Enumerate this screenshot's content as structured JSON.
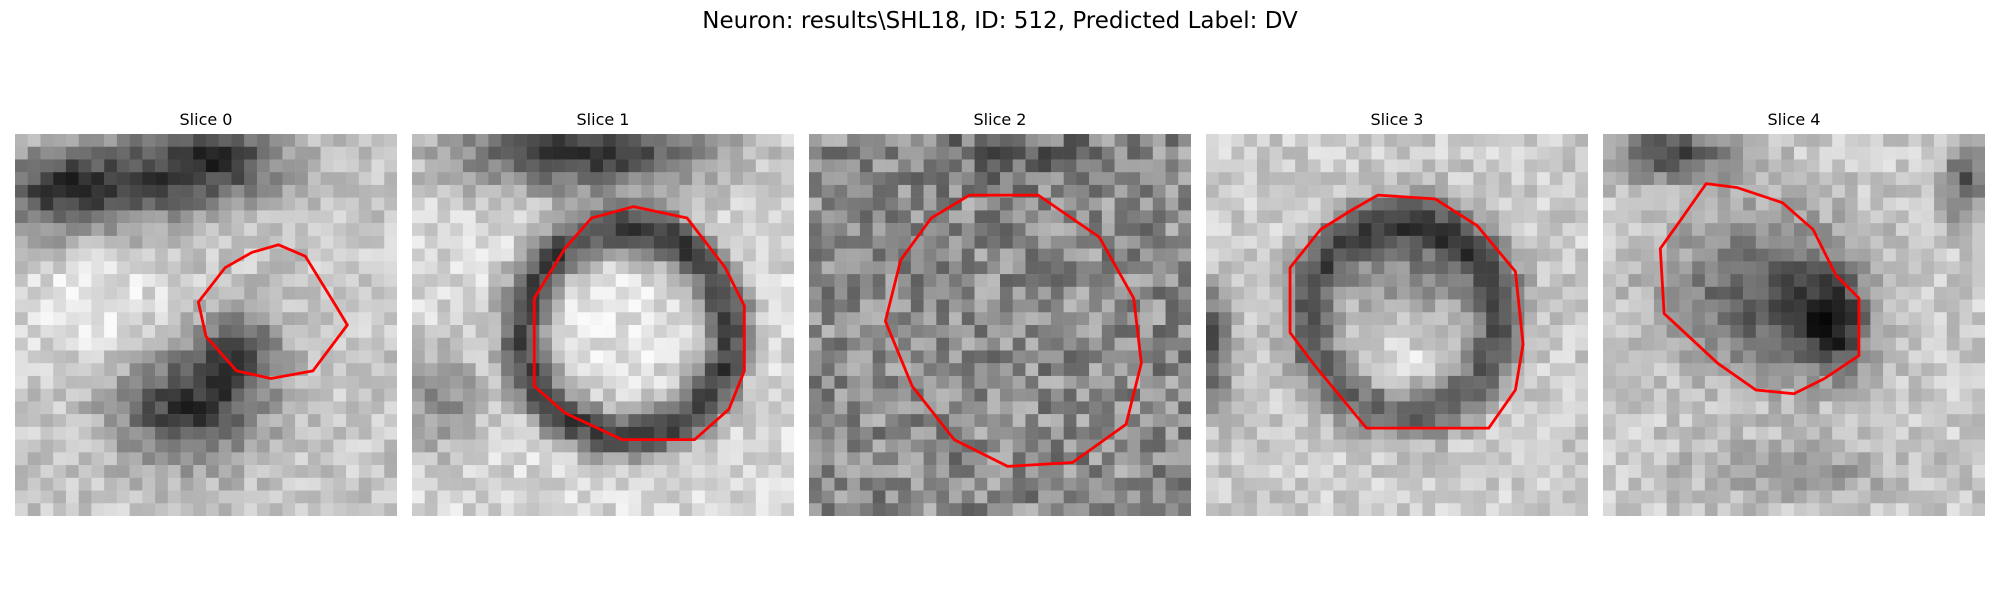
{
  "figure": {
    "title": "Neuron: results\\SHL18, ID: 512, Predicted Label: DV",
    "contour_color": "#ff0000",
    "colormap": "grayscale",
    "slices": [
      {
        "label": "Slice 0",
        "pattern": "dark-blobs-top-and-lower-left",
        "contour": [
          [
            0.69,
            0.29
          ],
          [
            0.76,
            0.32
          ],
          [
            0.84,
            0.45
          ],
          [
            0.87,
            0.5
          ],
          [
            0.78,
            0.62
          ],
          [
            0.67,
            0.64
          ],
          [
            0.58,
            0.62
          ],
          [
            0.5,
            0.53
          ],
          [
            0.48,
            0.44
          ],
          [
            0.55,
            0.35
          ],
          [
            0.62,
            0.31
          ]
        ]
      },
      {
        "label": "Slice 1",
        "pattern": "dark-ring-bright-core",
        "contour": [
          [
            0.58,
            0.19
          ],
          [
            0.72,
            0.22
          ],
          [
            0.82,
            0.35
          ],
          [
            0.87,
            0.45
          ],
          [
            0.87,
            0.62
          ],
          [
            0.83,
            0.72
          ],
          [
            0.74,
            0.8
          ],
          [
            0.55,
            0.8
          ],
          [
            0.4,
            0.73
          ],
          [
            0.32,
            0.66
          ],
          [
            0.32,
            0.43
          ],
          [
            0.4,
            0.3
          ],
          [
            0.47,
            0.22
          ]
        ]
      },
      {
        "label": "Slice 2",
        "pattern": "noisy-uniform",
        "contour": [
          [
            0.42,
            0.16
          ],
          [
            0.6,
            0.16
          ],
          [
            0.76,
            0.27
          ],
          [
            0.85,
            0.43
          ],
          [
            0.87,
            0.6
          ],
          [
            0.83,
            0.76
          ],
          [
            0.69,
            0.86
          ],
          [
            0.52,
            0.87
          ],
          [
            0.38,
            0.8
          ],
          [
            0.27,
            0.66
          ],
          [
            0.2,
            0.49
          ],
          [
            0.24,
            0.33
          ],
          [
            0.32,
            0.22
          ]
        ]
      },
      {
        "label": "Slice 3",
        "pattern": "ring-with-bright-bottom-half",
        "contour": [
          [
            0.45,
            0.16
          ],
          [
            0.6,
            0.17
          ],
          [
            0.71,
            0.24
          ],
          [
            0.81,
            0.36
          ],
          [
            0.83,
            0.55
          ],
          [
            0.81,
            0.67
          ],
          [
            0.74,
            0.77
          ],
          [
            0.42,
            0.77
          ],
          [
            0.28,
            0.6
          ],
          [
            0.22,
            0.52
          ],
          [
            0.22,
            0.35
          ],
          [
            0.3,
            0.25
          ],
          [
            0.38,
            0.2
          ]
        ]
      },
      {
        "label": "Slice 4",
        "pattern": "dark-blob-right",
        "contour": [
          [
            0.27,
            0.13
          ],
          [
            0.35,
            0.14
          ],
          [
            0.47,
            0.18
          ],
          [
            0.55,
            0.25
          ],
          [
            0.61,
            0.37
          ],
          [
            0.67,
            0.43
          ],
          [
            0.67,
            0.58
          ],
          [
            0.58,
            0.64
          ],
          [
            0.5,
            0.68
          ],
          [
            0.4,
            0.67
          ],
          [
            0.3,
            0.6
          ],
          [
            0.16,
            0.47
          ],
          [
            0.15,
            0.3
          ],
          [
            0.2,
            0.23
          ]
        ]
      }
    ]
  }
}
